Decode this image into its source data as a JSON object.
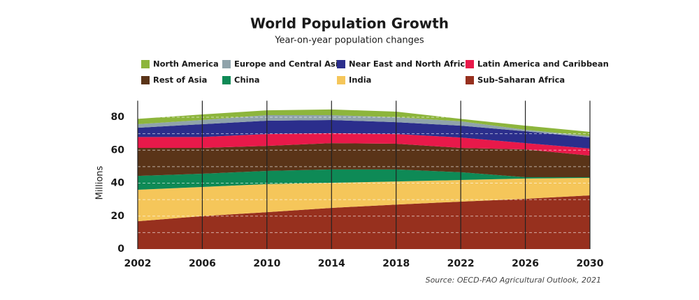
{
  "chart_data": {
    "type": "stacked_area",
    "title": "World Population Growth",
    "subtitle": "Year-on-year population changes",
    "y_label": "Millions",
    "source": "Source: OECD-FAO Agricultural Outlook, 2021",
    "x": [
      2002,
      2006,
      2010,
      2014,
      2018,
      2022,
      2026,
      2030
    ],
    "xlim": [
      2002,
      2030
    ],
    "xticks": [
      2002,
      2006,
      2010,
      2014,
      2018,
      2022,
      2026,
      2030
    ],
    "ylim": [
      0,
      90
    ],
    "yticks": [
      0,
      20,
      40,
      60,
      80
    ],
    "yminorticks": [
      10,
      30,
      50,
      70
    ],
    "grid": true,
    "series": [
      {
        "name": "North America",
        "color": "#8db53c",
        "values": [
          3.2,
          3.4,
          2.9,
          3.4,
          3.4,
          1.5,
          2.5,
          2.5
        ]
      },
      {
        "name": "Europe and Central Asia",
        "color": "#8fa3ab",
        "values": [
          2.2,
          2.5,
          3.4,
          3.0,
          3.0,
          2.6,
          0.9,
          0.9
        ]
      },
      {
        "name": "Near East and North Africa",
        "color": "#2b2e8c",
        "values": [
          5.6,
          7.8,
          8.1,
          8.0,
          7.2,
          7.2,
          7.2,
          6.7
        ]
      },
      {
        "name": "Latin America and Caribbean",
        "color": "#e8194a",
        "values": [
          6.6,
          6.6,
          7.2,
          6.0,
          5.9,
          6.3,
          3.8,
          4.3
        ]
      },
      {
        "name": "Rest of Asia",
        "color": "#5a3418",
        "values": [
          17.0,
          15.7,
          15.2,
          16.0,
          15.6,
          14.8,
          16.9,
          13.1
        ]
      },
      {
        "name": "China",
        "color": "#0e8a56",
        "values": [
          8.4,
          8.0,
          8.0,
          8.1,
          7.3,
          4.7,
          0.8,
          0.4
        ]
      },
      {
        "name": "India",
        "color": "#f5c65a",
        "values": [
          19.1,
          17.7,
          17.0,
          15.2,
          14.0,
          13.1,
          12.3,
          10.6
        ]
      },
      {
        "name": "Sub-Saharan Africa",
        "color": "#97301e",
        "values": [
          16.9,
          20.0,
          22.4,
          25.0,
          27.0,
          28.8,
          30.5,
          32.6
        ]
      }
    ]
  }
}
